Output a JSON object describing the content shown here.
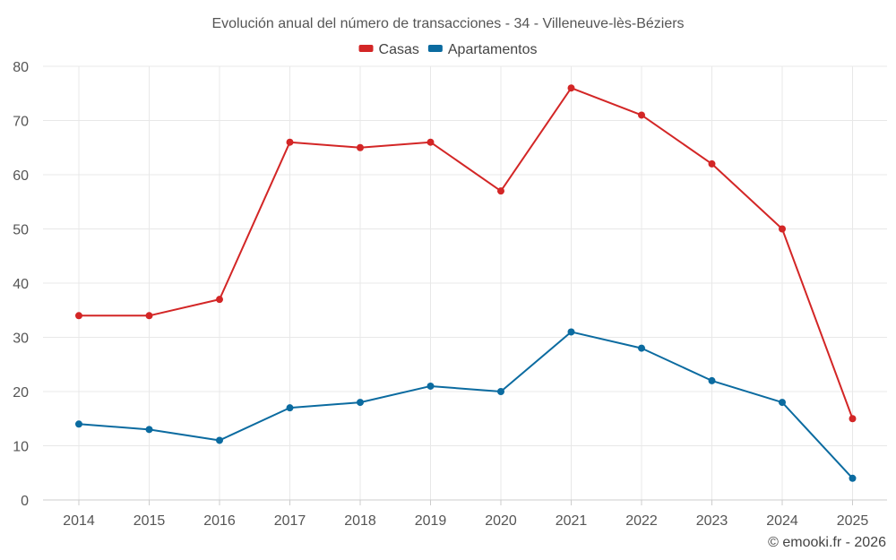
{
  "chart_data": {
    "type": "line",
    "title": "Evolución anual del número de transacciones - 34 - Villeneuve-lès-Béziers",
    "categories": [
      "2014",
      "2015",
      "2016",
      "2017",
      "2018",
      "2019",
      "2020",
      "2021",
      "2022",
      "2023",
      "2024",
      "2025"
    ],
    "series": [
      {
        "name": "Casas",
        "color": "#d32626",
        "values": [
          34,
          34,
          37,
          66,
          65,
          66,
          57,
          76,
          71,
          62,
          50,
          15
        ]
      },
      {
        "name": "Apartamentos",
        "color": "#0b6ba0",
        "values": [
          14,
          13,
          11,
          17,
          18,
          21,
          20,
          31,
          28,
          22,
          18,
          4
        ]
      }
    ],
    "yticks": [
      0,
      10,
      20,
      30,
      40,
      50,
      60,
      70,
      80
    ],
    "ylim": [
      0,
      80
    ],
    "xlabel": "",
    "ylabel": "",
    "grid": true,
    "legend": "top-center"
  },
  "credit": "© emooki.fr - 2026"
}
